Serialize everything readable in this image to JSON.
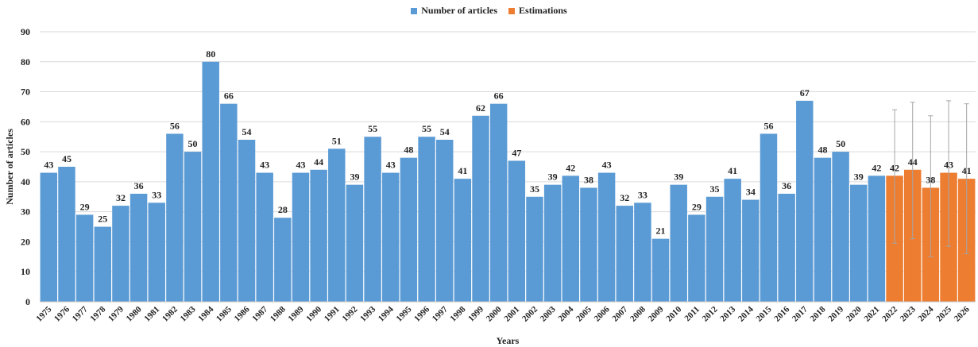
{
  "chart_data": {
    "type": "bar",
    "xlabel": "Years",
    "ylabel": "Number of articles",
    "ylim": [
      0,
      90
    ],
    "yticks": [
      0,
      10,
      20,
      30,
      40,
      50,
      60,
      70,
      80,
      90
    ],
    "grid": true,
    "legend_position": "top-center",
    "categories": [
      "1975",
      "1976",
      "1977",
      "1978",
      "1979",
      "1980",
      "1981",
      "1982",
      "1983",
      "1984",
      "1985",
      "1986",
      "1987",
      "1988",
      "1989",
      "1990",
      "1991",
      "1992",
      "1993",
      "1994",
      "1995",
      "1996",
      "1997",
      "1998",
      "1999",
      "2000",
      "2001",
      "2002",
      "2003",
      "2004",
      "2005",
      "2006",
      "2007",
      "2008",
      "2009",
      "2010",
      "2011",
      "2012",
      "2013",
      "2014",
      "2015",
      "2016",
      "2017",
      "2018",
      "2019",
      "2020",
      "2021",
      "2022",
      "2023",
      "2024",
      "2025",
      "2026"
    ],
    "series": [
      {
        "name": "Number of articles",
        "color": "#5b9bd5",
        "values": [
          43,
          45,
          29,
          25,
          32,
          36,
          33,
          56,
          50,
          80,
          66,
          54,
          43,
          28,
          43,
          44,
          51,
          39,
          55,
          43,
          48,
          55,
          54,
          41,
          62,
          66,
          47,
          35,
          39,
          42,
          38,
          43,
          32,
          33,
          21,
          39,
          29,
          35,
          41,
          34,
          56,
          36,
          67,
          48,
          50,
          39,
          42,
          null,
          null,
          null,
          null,
          null
        ]
      },
      {
        "name": "Estimations",
        "color": "#ed7d31",
        "values": [
          null,
          null,
          null,
          null,
          null,
          null,
          null,
          null,
          null,
          null,
          null,
          null,
          null,
          null,
          null,
          null,
          null,
          null,
          null,
          null,
          null,
          null,
          null,
          null,
          null,
          null,
          null,
          null,
          null,
          null,
          null,
          null,
          null,
          null,
          null,
          null,
          null,
          null,
          null,
          null,
          null,
          null,
          null,
          null,
          null,
          null,
          null,
          42,
          44,
          38,
          43,
          41
        ],
        "error_low": [
          null,
          null,
          null,
          null,
          null,
          null,
          null,
          null,
          null,
          null,
          null,
          null,
          null,
          null,
          null,
          null,
          null,
          null,
          null,
          null,
          null,
          null,
          null,
          null,
          null,
          null,
          null,
          null,
          null,
          null,
          null,
          null,
          null,
          null,
          null,
          null,
          null,
          null,
          null,
          null,
          null,
          null,
          null,
          null,
          null,
          null,
          null,
          19.5,
          21,
          15,
          18.5,
          16
        ],
        "error_high": [
          null,
          null,
          null,
          null,
          null,
          null,
          null,
          null,
          null,
          null,
          null,
          null,
          null,
          null,
          null,
          null,
          null,
          null,
          null,
          null,
          null,
          null,
          null,
          null,
          null,
          null,
          null,
          null,
          null,
          null,
          null,
          null,
          null,
          null,
          null,
          null,
          null,
          null,
          null,
          null,
          null,
          null,
          null,
          null,
          null,
          null,
          null,
          64,
          66.5,
          62,
          67,
          66
        ]
      }
    ]
  }
}
